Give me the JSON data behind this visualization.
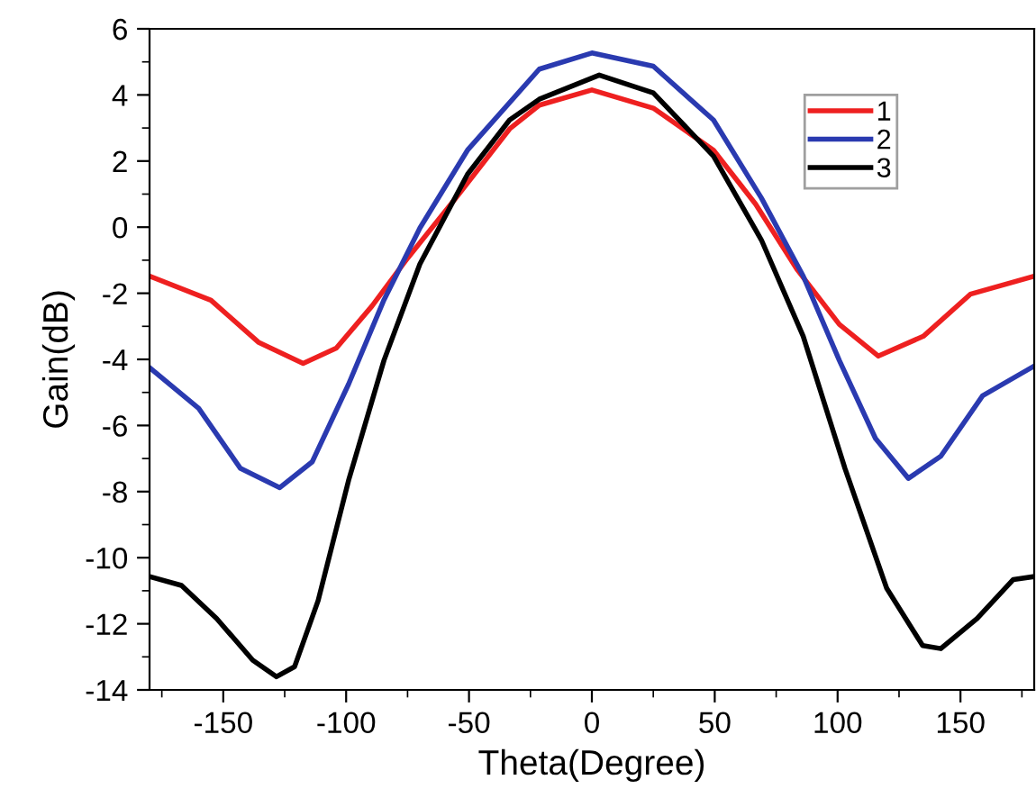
{
  "chart_data": {
    "type": "line",
    "xlabel": "Theta(Degree)",
    "ylabel": "Gain(dB)",
    "xlim": [
      -180,
      180
    ],
    "xticks": [
      -150,
      -100,
      -50,
      0,
      50,
      100,
      150
    ],
    "ylim": [
      -14,
      6
    ],
    "yticks": [
      -14,
      -12,
      -10,
      -8,
      -6,
      -4,
      -2,
      0,
      2,
      4,
      6
    ],
    "legend": "top right",
    "grid": false,
    "marker": "none",
    "line_style": "solid",
    "series": [
      {
        "name": "1",
        "color": "#ee2020",
        "x": [
          -180,
          -155,
          -135.7,
          -117.5,
          -104,
          -89.5,
          -75,
          -55.4,
          -33.5,
          -21.4,
          0,
          25,
          49.5,
          66.6,
          83.7,
          100.7,
          116.6,
          134.9,
          154,
          180
        ],
        "values": [
          -1.48,
          -2.21,
          -3.48,
          -4.12,
          -3.66,
          -2.39,
          -0.94,
          0.88,
          2.97,
          3.69,
          4.15,
          3.6,
          2.33,
          0.7,
          -1.3,
          -2.94,
          -3.9,
          -3.3,
          -2.03,
          -1.48
        ]
      },
      {
        "name": "2",
        "color": "#2a3ab0",
        "x": [
          -180,
          -160,
          -143,
          -127,
          -113.8,
          -99,
          -84.6,
          -70,
          -50.6,
          -21.4,
          0,
          25,
          49.5,
          69,
          86,
          100.7,
          115.4,
          128.8,
          142,
          159,
          180
        ],
        "values": [
          -4.25,
          -5.48,
          -7.3,
          -7.88,
          -7.1,
          -4.75,
          -2.2,
          -0.03,
          2.33,
          4.78,
          5.27,
          4.87,
          3.24,
          0.88,
          -1.48,
          -4.03,
          -6.39,
          -7.6,
          -6.93,
          -5.1,
          -4.2
        ]
      },
      {
        "name": "3",
        "color": "#000000",
        "x": [
          -180,
          -167,
          -152.7,
          -138,
          -128.4,
          -121,
          -111.4,
          -99,
          -84.6,
          -70,
          -50.6,
          -33.5,
          -21.4,
          3,
          25,
          49.5,
          69,
          86,
          103,
          120,
          134.6,
          142,
          156.8,
          171.5,
          180
        ],
        "values": [
          -10.57,
          -10.84,
          -11.84,
          -13.1,
          -13.6,
          -13.3,
          -11.3,
          -7.66,
          -4.03,
          -1.12,
          1.6,
          3.24,
          3.87,
          4.6,
          4.06,
          2.15,
          -0.39,
          -3.3,
          -7.3,
          -10.93,
          -12.66,
          -12.75,
          -11.84,
          -10.66,
          -10.57
        ]
      }
    ]
  }
}
